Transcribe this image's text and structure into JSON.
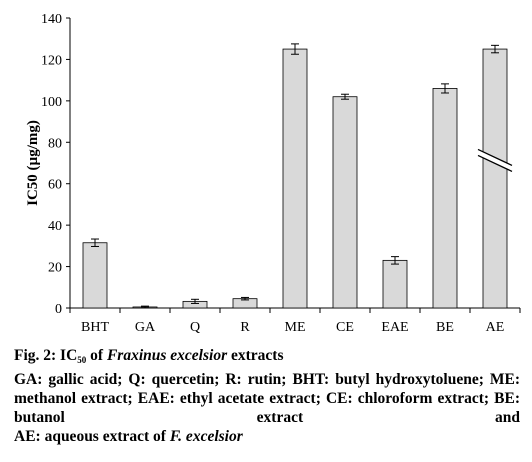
{
  "chart_data": {
    "type": "bar",
    "categories": [
      "BHT",
      "GA",
      "Q",
      "R",
      "ME",
      "CE",
      "EAE",
      "BE",
      "AE"
    ],
    "values": [
      31.5,
      0.5,
      3.2,
      4.5,
      125,
      102,
      23,
      106,
      125
    ],
    "errors": [
      1.8,
      0.4,
      1.0,
      0.6,
      2.5,
      1.2,
      1.8,
      2.2,
      1.8
    ],
    "ylabel": "IC50 (µg/mg)",
    "xlabel": "",
    "title": "",
    "ylim": [
      0,
      140
    ],
    "yticks": [
      0,
      20,
      40,
      60,
      80,
      100,
      120,
      140
    ],
    "axis_break": "AE",
    "bar_color": "#d9d9d9",
    "grid": false,
    "legend": "none"
  },
  "caption": {
    "fig_label": "Fig. 2: IC",
    "fig_sub": "50",
    "fig_of": " of ",
    "fig_species": "Fraxinus excelsior",
    "fig_tail": " extracts",
    "body": "GA: gallic acid; Q: quercetin; R: rutin; BHT: butyl hydroxytoluene; ME: methanol extract; EAE: ethyl acetate extract; CE: chloroform extract; BE: butanol extract and",
    "last_prefix": "AE: aqueous extract of ",
    "last_species": "F. excelsior"
  }
}
